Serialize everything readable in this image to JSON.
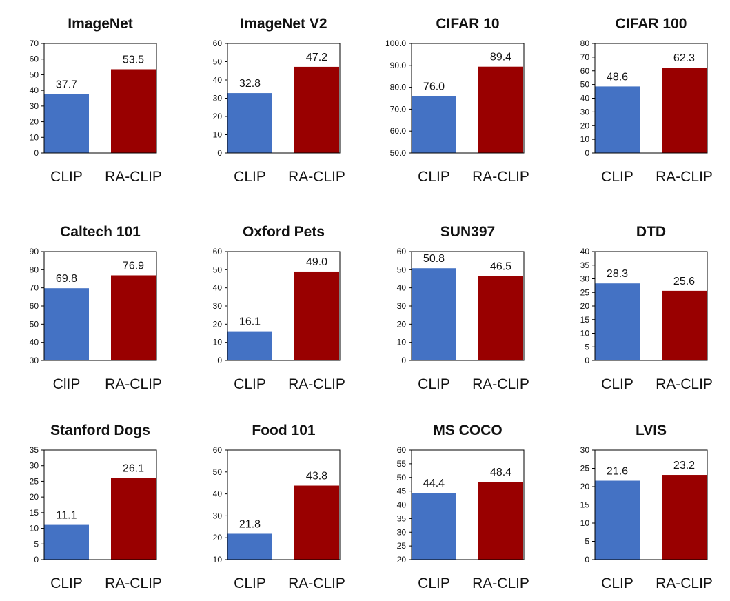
{
  "colors": {
    "clip": "#4472C4",
    "raclip": "#990000",
    "axis": "#000000"
  },
  "chart_data": [
    {
      "type": "bar",
      "title": "ImageNet",
      "categories": [
        "CLIP",
        "RA-CLIP"
      ],
      "values": [
        37.7,
        53.5
      ],
      "value_labels": [
        "37.7",
        "53.5"
      ],
      "ylim": [
        0,
        70
      ],
      "yticks": [
        "0",
        "10",
        "20",
        "30",
        "40",
        "50",
        "60",
        "70"
      ],
      "grid": false
    },
    {
      "type": "bar",
      "title": "ImageNet V2",
      "categories": [
        "CLIP",
        "RA-CLIP"
      ],
      "values": [
        32.8,
        47.2
      ],
      "value_labels": [
        "32.8",
        "47.2"
      ],
      "ylim": [
        0,
        60
      ],
      "yticks": [
        "0",
        "10",
        "20",
        "30",
        "40",
        "50",
        "60"
      ],
      "grid": false
    },
    {
      "type": "bar",
      "title": "CIFAR 10",
      "categories": [
        "CLIP",
        "RA-CLIP"
      ],
      "values": [
        76.0,
        89.4
      ],
      "value_labels": [
        "76.0",
        "89.4"
      ],
      "ylim": [
        50,
        100
      ],
      "yticks": [
        "50.0",
        "60.0",
        "70.0",
        "80.0",
        "90.0",
        "100.0"
      ],
      "grid": false
    },
    {
      "type": "bar",
      "title": "CIFAR 100",
      "categories": [
        "CLIP",
        "RA-CLIP"
      ],
      "values": [
        48.6,
        62.3
      ],
      "value_labels": [
        "48.6",
        "62.3"
      ],
      "ylim": [
        0,
        80
      ],
      "yticks": [
        "0",
        "10",
        "20",
        "30",
        "40",
        "50",
        "60",
        "70",
        "80"
      ],
      "grid": false
    },
    {
      "type": "bar",
      "title": "Caltech 101",
      "categories": [
        "ClIP",
        "RA-CLIP"
      ],
      "values": [
        69.8,
        76.9
      ],
      "value_labels": [
        "69.8",
        "76.9"
      ],
      "ylim": [
        30,
        90
      ],
      "yticks": [
        "30",
        "40",
        "50",
        "60",
        "70",
        "80",
        "90"
      ],
      "grid": false
    },
    {
      "type": "bar",
      "title": "Oxford Pets",
      "categories": [
        "CLIP",
        "RA-CLIP"
      ],
      "values": [
        16.1,
        49.0
      ],
      "value_labels": [
        "16.1",
        "49.0"
      ],
      "ylim": [
        0,
        60
      ],
      "yticks": [
        "0",
        "10",
        "20",
        "30",
        "40",
        "50",
        "60"
      ],
      "grid": false
    },
    {
      "type": "bar",
      "title": "SUN397",
      "categories": [
        "CLIP",
        "RA-CLIP"
      ],
      "values": [
        50.8,
        46.5
      ],
      "value_labels": [
        "50.8",
        "46.5"
      ],
      "ylim": [
        0,
        60
      ],
      "yticks": [
        "0",
        "10",
        "20",
        "30",
        "40",
        "50",
        "60"
      ],
      "grid": false
    },
    {
      "type": "bar",
      "title": "DTD",
      "categories": [
        "CLIP",
        "RA-CLIP"
      ],
      "values": [
        28.3,
        25.6
      ],
      "value_labels": [
        "28.3",
        "25.6"
      ],
      "ylim": [
        0,
        40
      ],
      "yticks": [
        "0",
        "5",
        "10",
        "15",
        "20",
        "25",
        "30",
        "35",
        "40"
      ],
      "grid": false
    },
    {
      "type": "bar",
      "title": "Stanford Dogs",
      "categories": [
        "CLIP",
        "RA-CLIP"
      ],
      "values": [
        11.1,
        26.1
      ],
      "value_labels": [
        "11.1",
        "26.1"
      ],
      "ylim": [
        0,
        35
      ],
      "yticks": [
        "0",
        "5",
        "10",
        "15",
        "20",
        "25",
        "30",
        "35"
      ],
      "grid": false
    },
    {
      "type": "bar",
      "title": "Food 101",
      "categories": [
        "CLIP",
        "RA-CLIP"
      ],
      "values": [
        21.8,
        43.8
      ],
      "value_labels": [
        "21.8",
        "43.8"
      ],
      "ylim": [
        10,
        60
      ],
      "yticks": [
        "10",
        "20",
        "30",
        "40",
        "50",
        "60"
      ],
      "grid": false
    },
    {
      "type": "bar",
      "title": "MS COCO",
      "categories": [
        "CLIP",
        "RA-CLIP"
      ],
      "values": [
        44.4,
        48.4
      ],
      "value_labels": [
        "44.4",
        "48.4"
      ],
      "ylim": [
        20,
        60
      ],
      "yticks": [
        "20",
        "25",
        "30",
        "35",
        "40",
        "45",
        "50",
        "55",
        "60"
      ],
      "grid": false
    },
    {
      "type": "bar",
      "title": "LVIS",
      "categories": [
        "CLIP",
        "RA-CLIP"
      ],
      "values": [
        21.6,
        23.2
      ],
      "value_labels": [
        "21.6",
        "23.2"
      ],
      "ylim": [
        0,
        30
      ],
      "yticks": [
        "0",
        "5",
        "10",
        "15",
        "20",
        "25",
        "30"
      ],
      "grid": false
    }
  ]
}
